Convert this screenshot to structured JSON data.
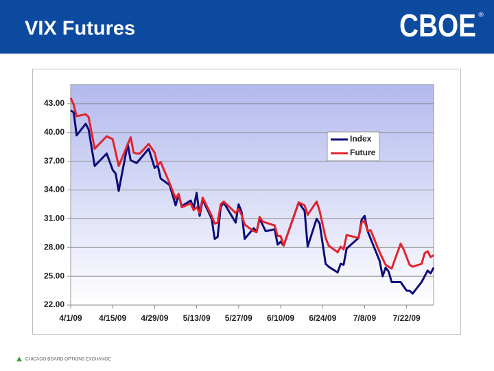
{
  "header": {
    "title": "VIX Futures",
    "logo": "CBOE",
    "logo_mark": "®"
  },
  "footer": "CHICAGO BOARD OPTIONS EXCHANGE",
  "chart_data": {
    "type": "line",
    "ylim": [
      22,
      45
    ],
    "yticks": [
      {
        "value": 22,
        "label": "22.00"
      },
      {
        "value": 25,
        "label": "25.00"
      },
      {
        "value": 28,
        "label": "28.00"
      },
      {
        "value": 31,
        "label": "31.00"
      },
      {
        "value": 34,
        "label": "34.00"
      },
      {
        "value": 37,
        "label": "37.00"
      },
      {
        "value": 40,
        "label": "40.00"
      },
      {
        "value": 43,
        "label": "43.00"
      }
    ],
    "xlim": [
      "2009-04-01",
      "2009-07-31"
    ],
    "xticks": [
      {
        "value": "2009-04-01",
        "label": "4/1/09"
      },
      {
        "value": "2009-04-15",
        "label": "4/15/09"
      },
      {
        "value": "2009-04-29",
        "label": "4/29/09"
      },
      {
        "value": "2009-05-13",
        "label": "5/13/09"
      },
      {
        "value": "2009-05-27",
        "label": "5/27/09"
      },
      {
        "value": "2009-06-10",
        "label": "6/10/09"
      },
      {
        "value": "2009-06-24",
        "label": "6/24/09"
      },
      {
        "value": "2009-07-08",
        "label": "7/8/09"
      },
      {
        "value": "2009-07-22",
        "label": "7/22/09"
      }
    ],
    "grid": true,
    "legend": "right",
    "series": [
      {
        "name": "Index",
        "color": "#0c0c78",
        "x": [
          "2009-04-01",
          "2009-04-02",
          "2009-04-03",
          "2009-04-06",
          "2009-04-07",
          "2009-04-09",
          "2009-04-13",
          "2009-04-15",
          "2009-04-16",
          "2009-04-17",
          "2009-04-20",
          "2009-04-21",
          "2009-04-23",
          "2009-04-27",
          "2009-04-29",
          "2009-04-30",
          "2009-05-01",
          "2009-05-04",
          "2009-05-06",
          "2009-05-07",
          "2009-05-08",
          "2009-05-11",
          "2009-05-12",
          "2009-05-13",
          "2009-05-14",
          "2009-05-15",
          "2009-05-18",
          "2009-05-19",
          "2009-05-20",
          "2009-05-21",
          "2009-05-22",
          "2009-05-26",
          "2009-05-27",
          "2009-05-28",
          "2009-05-29",
          "2009-06-01",
          "2009-06-02",
          "2009-06-03",
          "2009-06-05",
          "2009-06-08",
          "2009-06-09",
          "2009-06-10",
          "2009-06-11",
          "2009-06-16",
          "2009-06-18",
          "2009-06-19",
          "2009-06-22",
          "2009-06-23",
          "2009-06-25",
          "2009-06-26",
          "2009-06-29",
          "2009-06-30",
          "2009-07-01",
          "2009-07-02",
          "2009-07-06",
          "2009-07-07",
          "2009-07-08",
          "2009-07-09",
          "2009-07-13",
          "2009-07-14",
          "2009-07-15",
          "2009-07-16",
          "2009-07-17",
          "2009-07-20",
          "2009-07-22",
          "2009-07-23",
          "2009-07-24",
          "2009-07-27",
          "2009-07-29",
          "2009-07-30",
          "2009-07-31"
        ],
        "values": [
          42.3,
          42.1,
          39.7,
          40.9,
          40.3,
          36.5,
          37.8,
          36.1,
          35.7,
          33.9,
          38.8,
          37.1,
          36.8,
          38.3,
          36.3,
          36.6,
          35.2,
          34.5,
          32.4,
          33.5,
          32.3,
          32.9,
          32.1,
          33.7,
          31.3,
          33.0,
          31.0,
          28.9,
          29.1,
          32.2,
          32.7,
          30.6,
          32.5,
          31.7,
          28.9,
          30.0,
          29.7,
          31.0,
          29.7,
          29.9,
          28.3,
          28.6,
          28.2,
          32.7,
          31.8,
          28.1,
          31.0,
          30.5,
          26.3,
          26.0,
          25.4,
          26.3,
          26.2,
          27.9,
          29.0,
          30.9,
          31.3,
          29.7,
          26.6,
          25.0,
          25.9,
          25.5,
          24.4,
          24.4,
          23.5,
          23.5,
          23.2,
          24.4,
          25.6,
          25.3,
          25.9
        ]
      },
      {
        "name": "Future",
        "color": "#e3232b",
        "x": [
          "2009-04-01",
          "2009-04-02",
          "2009-04-03",
          "2009-04-06",
          "2009-04-07",
          "2009-04-09",
          "2009-04-13",
          "2009-04-15",
          "2009-04-17",
          "2009-04-21",
          "2009-04-22",
          "2009-04-23",
          "2009-04-24",
          "2009-04-27",
          "2009-04-29",
          "2009-04-30",
          "2009-05-01",
          "2009-05-04",
          "2009-05-06",
          "2009-05-07",
          "2009-05-08",
          "2009-05-11",
          "2009-05-12",
          "2009-05-13",
          "2009-05-14",
          "2009-05-15",
          "2009-05-18",
          "2009-05-19",
          "2009-05-20",
          "2009-05-21",
          "2009-05-22",
          "2009-05-26",
          "2009-05-27",
          "2009-05-28",
          "2009-05-29",
          "2009-06-01",
          "2009-06-02",
          "2009-06-03",
          "2009-06-04",
          "2009-06-08",
          "2009-06-09",
          "2009-06-10",
          "2009-06-11",
          "2009-06-16",
          "2009-06-18",
          "2009-06-19",
          "2009-06-22",
          "2009-06-23",
          "2009-06-25",
          "2009-06-26",
          "2009-06-29",
          "2009-06-30",
          "2009-07-01",
          "2009-07-02",
          "2009-07-06",
          "2009-07-07",
          "2009-07-08",
          "2009-07-09",
          "2009-07-10",
          "2009-07-13",
          "2009-07-15",
          "2009-07-17",
          "2009-07-20",
          "2009-07-21",
          "2009-07-23",
          "2009-07-24",
          "2009-07-27",
          "2009-07-28",
          "2009-07-29",
          "2009-07-30",
          "2009-07-31"
        ],
        "values": [
          43.6,
          42.9,
          41.7,
          41.9,
          41.6,
          38.3,
          39.6,
          39.3,
          36.5,
          39.5,
          37.9,
          37.8,
          37.8,
          38.8,
          37.9,
          36.6,
          36.9,
          34.7,
          33.1,
          33.6,
          32.2,
          32.6,
          31.9,
          32.2,
          31.6,
          33.2,
          31.3,
          30.5,
          30.6,
          32.5,
          32.8,
          31.6,
          32.0,
          31.4,
          30.4,
          29.7,
          29.6,
          31.2,
          30.7,
          30.3,
          29.2,
          29.2,
          28.2,
          32.7,
          32.4,
          31.4,
          32.8,
          31.8,
          29.0,
          28.2,
          27.5,
          28.1,
          27.8,
          29.3,
          29.0,
          30.6,
          30.8,
          29.7,
          29.8,
          27.5,
          26.2,
          25.8,
          28.4,
          27.8,
          26.2,
          26.0,
          26.3,
          27.4,
          27.6,
          27.0,
          27.2
        ]
      }
    ]
  }
}
